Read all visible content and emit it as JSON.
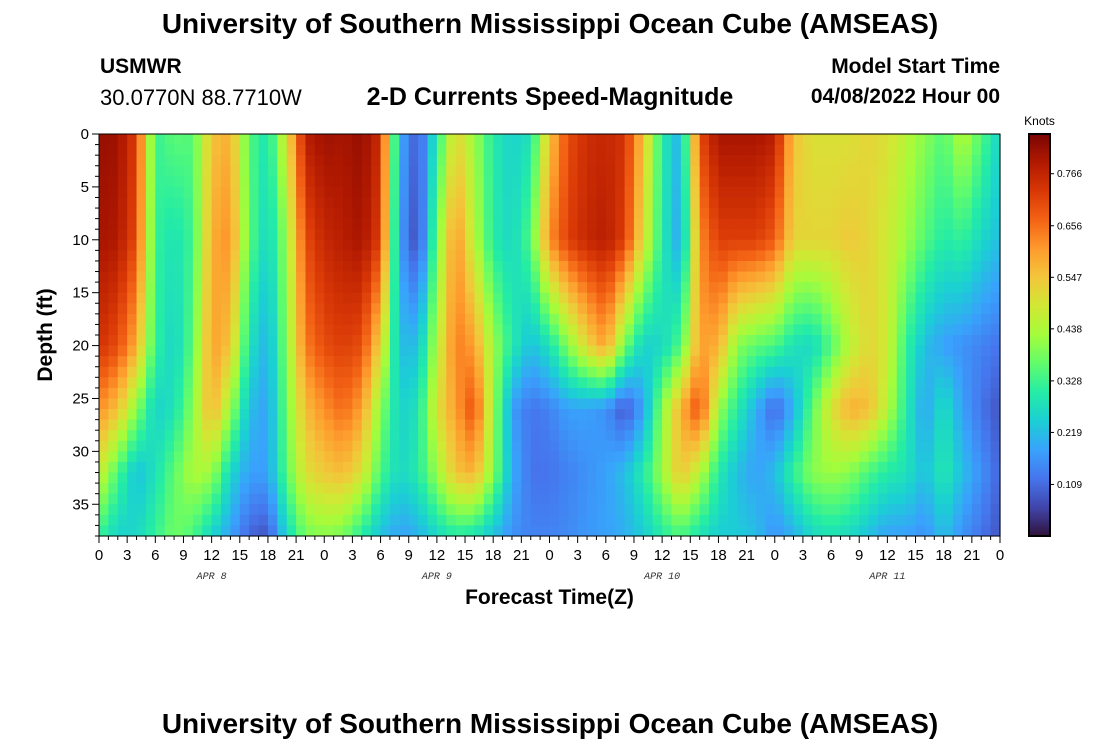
{
  "header": {
    "title": "University of Southern Mississippi Ocean Cube (AMSEAS)",
    "station": "USMWR",
    "coordinates": "30.0770N  88.7710W",
    "subtitle": "2-D Currents Speed-Magnitude",
    "model_start_label": "Model Start Time",
    "model_start_value": "04/08/2022 Hour 00"
  },
  "footer": {
    "title": "University of Southern Mississippi Ocean Cube (AMSEAS)"
  },
  "chart_data": {
    "type": "heatmap",
    "title": "2-D Currents Speed-Magnitude",
    "xlabel": "Forecast Time(Z)",
    "ylabel": "Depth (ft)",
    "x_range_hours": [
      0,
      96
    ],
    "y_range_ft": [
      0,
      38
    ],
    "y_inverted": true,
    "x_tick_labels": [
      "0",
      "3",
      "6",
      "9",
      "12",
      "15",
      "18",
      "21",
      "0",
      "3",
      "6",
      "9",
      "12",
      "15",
      "18",
      "21",
      "0",
      "3",
      "6",
      "9",
      "12",
      "15",
      "18",
      "21",
      "0",
      "3",
      "6",
      "9",
      "12",
      "15",
      "18",
      "21",
      "0"
    ],
    "y_ticks": [
      0,
      5,
      10,
      15,
      20,
      25,
      30,
      35
    ],
    "day_labels": [
      {
        "label": "APR 8",
        "hour": 12
      },
      {
        "label": "APR 9",
        "hour": 36
      },
      {
        "label": "APR 10",
        "hour": 60
      },
      {
        "label": "APR 11",
        "hour": 84
      }
    ],
    "colorbar": {
      "unit": "Knots",
      "tick_labels": [
        "0.766",
        "0.656",
        "0.547",
        "0.438",
        "0.328",
        "0.219",
        "0.109"
      ],
      "tick_values": [
        0.766,
        0.656,
        0.547,
        0.438,
        0.328,
        0.219,
        0.109
      ],
      "range": [
        0.0,
        0.85
      ],
      "colormap_stops": [
        "#30123b",
        "#4145ab",
        "#4675ed",
        "#39a2fc",
        "#1bcfd4",
        "#24eca6",
        "#61fc6c",
        "#a4fc3b",
        "#d1e834",
        "#f3c63a",
        "#fe9b2d",
        "#f36315",
        "#d93806",
        "#b11901",
        "#7a0402"
      ]
    },
    "hour_columns": [
      0,
      2,
      4,
      6,
      8,
      10,
      12,
      14,
      16,
      18,
      20,
      22,
      24,
      26,
      28,
      30,
      32,
      34,
      36,
      38,
      40,
      42,
      44,
      46,
      48,
      50,
      52,
      54,
      56,
      58,
      60,
      62,
      64,
      66,
      68,
      70,
      72,
      74,
      76,
      78,
      80,
      82,
      84,
      86,
      88,
      90,
      92,
      94,
      96
    ],
    "depth_rows_ft": [
      0,
      10,
      20,
      26,
      32,
      38
    ],
    "speed_grid_knots": [
      [
        0.82,
        0.81,
        0.72,
        0.32,
        0.36,
        0.35,
        0.55,
        0.58,
        0.35,
        0.28,
        0.5,
        0.78,
        0.81,
        0.8,
        0.82,
        0.75,
        0.2,
        0.08,
        0.3,
        0.52,
        0.42,
        0.3,
        0.25,
        0.28,
        0.55,
        0.7,
        0.75,
        0.76,
        0.74,
        0.55,
        0.3,
        0.2,
        0.7,
        0.8,
        0.8,
        0.8,
        0.78,
        0.55,
        0.5,
        0.5,
        0.5,
        0.52,
        0.5,
        0.45,
        0.4,
        0.35,
        0.45,
        0.35,
        0.25
      ],
      [
        0.8,
        0.79,
        0.7,
        0.32,
        0.28,
        0.33,
        0.58,
        0.62,
        0.36,
        0.25,
        0.42,
        0.7,
        0.76,
        0.78,
        0.8,
        0.72,
        0.18,
        0.06,
        0.38,
        0.62,
        0.45,
        0.3,
        0.26,
        0.35,
        0.62,
        0.72,
        0.76,
        0.78,
        0.72,
        0.5,
        0.3,
        0.18,
        0.62,
        0.72,
        0.72,
        0.72,
        0.68,
        0.52,
        0.52,
        0.52,
        0.54,
        0.52,
        0.48,
        0.42,
        0.35,
        0.3,
        0.32,
        0.26,
        0.22
      ],
      [
        0.74,
        0.7,
        0.58,
        0.32,
        0.25,
        0.36,
        0.6,
        0.55,
        0.28,
        0.2,
        0.4,
        0.64,
        0.7,
        0.72,
        0.7,
        0.52,
        0.22,
        0.22,
        0.45,
        0.64,
        0.6,
        0.42,
        0.3,
        0.22,
        0.28,
        0.4,
        0.52,
        0.6,
        0.38,
        0.25,
        0.26,
        0.35,
        0.6,
        0.58,
        0.4,
        0.36,
        0.34,
        0.28,
        0.26,
        0.35,
        0.45,
        0.52,
        0.48,
        0.32,
        0.22,
        0.18,
        0.16,
        0.14,
        0.12
      ],
      [
        0.62,
        0.55,
        0.4,
        0.25,
        0.28,
        0.4,
        0.58,
        0.42,
        0.22,
        0.18,
        0.38,
        0.56,
        0.62,
        0.66,
        0.6,
        0.4,
        0.25,
        0.28,
        0.5,
        0.6,
        0.7,
        0.42,
        0.18,
        0.12,
        0.14,
        0.18,
        0.18,
        0.16,
        0.08,
        0.18,
        0.4,
        0.58,
        0.7,
        0.42,
        0.3,
        0.2,
        0.1,
        0.2,
        0.36,
        0.5,
        0.58,
        0.56,
        0.45,
        0.3,
        0.18,
        0.28,
        0.18,
        0.12,
        0.08
      ],
      [
        0.48,
        0.34,
        0.22,
        0.28,
        0.36,
        0.44,
        0.42,
        0.26,
        0.18,
        0.18,
        0.36,
        0.5,
        0.54,
        0.56,
        0.5,
        0.34,
        0.26,
        0.3,
        0.42,
        0.55,
        0.58,
        0.4,
        0.2,
        0.12,
        0.12,
        0.14,
        0.16,
        0.18,
        0.22,
        0.3,
        0.42,
        0.55,
        0.45,
        0.3,
        0.22,
        0.18,
        0.22,
        0.32,
        0.4,
        0.42,
        0.4,
        0.34,
        0.3,
        0.28,
        0.22,
        0.3,
        0.22,
        0.16,
        0.1
      ],
      [
        0.32,
        0.25,
        0.26,
        0.32,
        0.38,
        0.34,
        0.25,
        0.18,
        0.1,
        0.08,
        0.26,
        0.38,
        0.4,
        0.38,
        0.3,
        0.22,
        0.18,
        0.2,
        0.26,
        0.3,
        0.28,
        0.22,
        0.16,
        0.14,
        0.14,
        0.15,
        0.17,
        0.18,
        0.2,
        0.24,
        0.3,
        0.34,
        0.28,
        0.24,
        0.24,
        0.22,
        0.16,
        0.2,
        0.26,
        0.28,
        0.26,
        0.22,
        0.18,
        0.18,
        0.16,
        0.22,
        0.16,
        0.12,
        0.08
      ]
    ]
  }
}
